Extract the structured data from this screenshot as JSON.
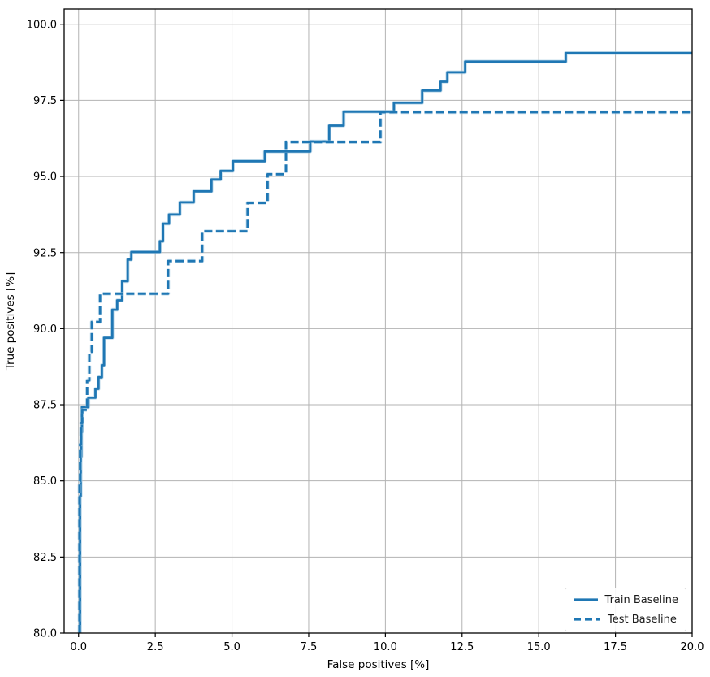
{
  "figure": {
    "background": "#ffffff"
  },
  "chart_data": {
    "type": "line",
    "subtype": "step",
    "title": "",
    "xlabel": "False positives [%]",
    "ylabel": "True positives [%]",
    "xlim": [
      -0.47,
      20
    ],
    "ylim": [
      80,
      100.5
    ],
    "xticks": [
      0,
      2.5,
      5,
      7.5,
      10,
      12.5,
      15,
      17.5,
      20
    ],
    "xtick_labels": [
      "0.0",
      "2.5",
      "5.0",
      "7.5",
      "10.0",
      "12.5",
      "15.0",
      "17.5",
      "20.0"
    ],
    "yticks": [
      80,
      82.5,
      85,
      87.5,
      90,
      92.5,
      95,
      97.5,
      100
    ],
    "ytick_labels": [
      "80.0",
      "82.5",
      "85.0",
      "87.5",
      "90.0",
      "92.5",
      "95.0",
      "97.5",
      "100.0"
    ],
    "grid": true,
    "grid_color": "#b3b3b3",
    "spine_color": "#000000",
    "line_color": "#1f77b4",
    "halo_color": "#9dc6e0",
    "legend": {
      "position": "lower right",
      "entries": [
        {
          "label": "Train Baseline",
          "style": "solid"
        },
        {
          "label": "Test Baseline",
          "style": "dashed"
        }
      ]
    },
    "series": [
      {
        "name": "Train Baseline",
        "style": "solid",
        "points": [
          [
            0.05,
            80
          ],
          [
            0.05,
            84.5
          ],
          [
            0.07,
            84.5
          ],
          [
            0.07,
            85.8
          ],
          [
            0.09,
            85.8
          ],
          [
            0.09,
            86.6
          ],
          [
            0.11,
            86.6
          ],
          [
            0.11,
            87.42
          ],
          [
            0.32,
            87.42
          ],
          [
            0.32,
            87.73
          ],
          [
            0.55,
            87.73
          ],
          [
            0.55,
            88.02
          ],
          [
            0.65,
            88.02
          ],
          [
            0.65,
            88.4
          ],
          [
            0.76,
            88.4
          ],
          [
            0.76,
            88.8
          ],
          [
            0.83,
            88.8
          ],
          [
            0.83,
            89.7
          ],
          [
            1.1,
            89.7
          ],
          [
            1.1,
            90.62
          ],
          [
            1.26,
            90.62
          ],
          [
            1.26,
            90.93
          ],
          [
            1.42,
            90.93
          ],
          [
            1.42,
            91.56
          ],
          [
            1.6,
            91.56
          ],
          [
            1.6,
            92.27
          ],
          [
            1.72,
            92.27
          ],
          [
            1.72,
            92.52
          ],
          [
            2.65,
            92.52
          ],
          [
            2.65,
            92.87
          ],
          [
            2.75,
            92.87
          ],
          [
            2.75,
            93.45
          ],
          [
            2.95,
            93.45
          ],
          [
            2.95,
            93.75
          ],
          [
            3.3,
            93.75
          ],
          [
            3.3,
            94.15
          ],
          [
            3.75,
            94.15
          ],
          [
            3.75,
            94.51
          ],
          [
            4.33,
            94.51
          ],
          [
            4.33,
            94.9
          ],
          [
            4.63,
            94.9
          ],
          [
            4.63,
            95.18
          ],
          [
            5.03,
            95.18
          ],
          [
            5.03,
            95.5
          ],
          [
            6.07,
            95.5
          ],
          [
            6.07,
            95.82
          ],
          [
            7.55,
            95.82
          ],
          [
            7.55,
            96.15
          ],
          [
            8.17,
            96.15
          ],
          [
            8.17,
            96.67
          ],
          [
            8.64,
            96.67
          ],
          [
            8.64,
            97.13
          ],
          [
            10.28,
            97.13
          ],
          [
            10.28,
            97.42
          ],
          [
            11.2,
            97.42
          ],
          [
            11.2,
            97.82
          ],
          [
            11.8,
            97.82
          ],
          [
            11.8,
            98.11
          ],
          [
            12.02,
            98.11
          ],
          [
            12.02,
            98.42
          ],
          [
            12.6,
            98.42
          ],
          [
            12.6,
            98.77
          ],
          [
            15.88,
            98.77
          ],
          [
            15.88,
            99.05
          ],
          [
            20,
            99.05
          ]
        ]
      },
      {
        "name": "Test Baseline",
        "style": "dashed",
        "points": [
          [
            0.03,
            80
          ],
          [
            0.03,
            85.0
          ],
          [
            0.05,
            85.0
          ],
          [
            0.05,
            86.2
          ],
          [
            0.08,
            86.2
          ],
          [
            0.08,
            86.9
          ],
          [
            0.12,
            86.9
          ],
          [
            0.12,
            87.33
          ],
          [
            0.28,
            87.33
          ],
          [
            0.28,
            88.3
          ],
          [
            0.35,
            88.3
          ],
          [
            0.35,
            89.24
          ],
          [
            0.43,
            89.24
          ],
          [
            0.43,
            90.22
          ],
          [
            0.7,
            90.22
          ],
          [
            0.7,
            91.15
          ],
          [
            2.92,
            91.15
          ],
          [
            2.92,
            92.22
          ],
          [
            4.03,
            92.22
          ],
          [
            4.03,
            93.2
          ],
          [
            5.51,
            93.2
          ],
          [
            5.51,
            94.13
          ],
          [
            6.16,
            94.13
          ],
          [
            6.16,
            95.07
          ],
          [
            6.76,
            95.07
          ],
          [
            6.76,
            96.13
          ],
          [
            9.84,
            96.13
          ],
          [
            9.84,
            97.11
          ],
          [
            20,
            97.11
          ]
        ]
      }
    ]
  }
}
